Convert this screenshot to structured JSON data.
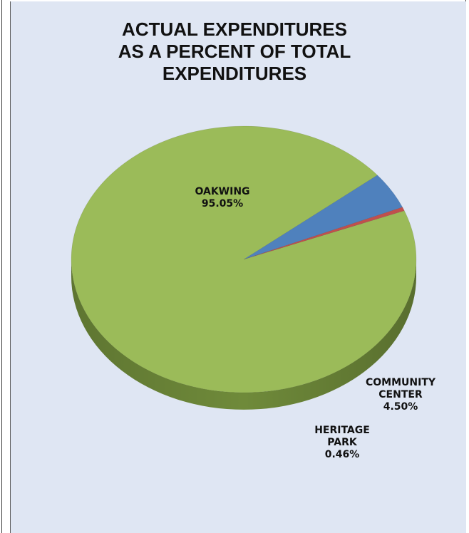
{
  "chart_data": {
    "type": "pie",
    "title_lines": [
      "ACTUAL EXPENDITURES",
      "AS A PERCENT OF TOTAL",
      "EXPENDITURES"
    ],
    "slices": [
      {
        "label_lines": [
          "OAKWING"
        ],
        "value": 95.05,
        "value_label": "95.05%",
        "color": "#9bbb59",
        "side_color": "#6f8a3a"
      },
      {
        "label_lines": [
          "COMMUNITY",
          "CENTER"
        ],
        "value": 4.5,
        "value_label": "4.50%",
        "color": "#4f81bd",
        "side_color": "#243f60"
      },
      {
        "label_lines": [
          "HERITAGE",
          "PARK"
        ],
        "value": 0.46,
        "value_label": "0.46%",
        "color": "#c0504d",
        "side_color": "#7a2624"
      }
    ],
    "legend": "none",
    "style": "3d-pie"
  }
}
